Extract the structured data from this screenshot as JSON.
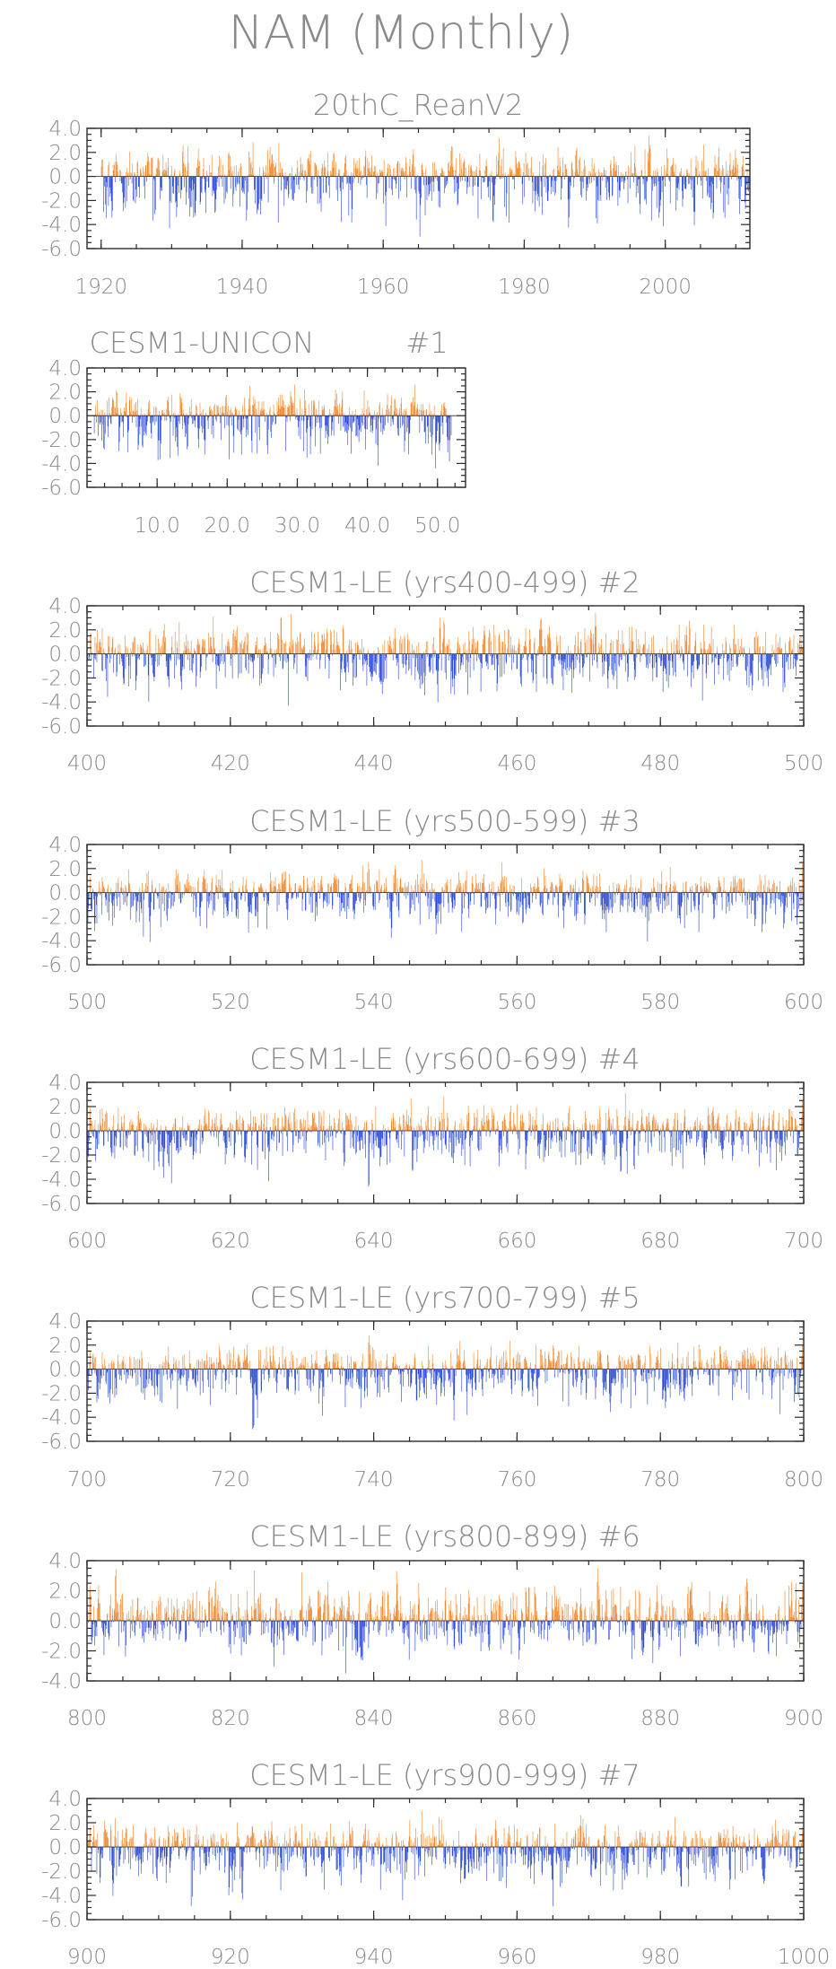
{
  "title": "NAM (Monthly)",
  "colors": {
    "positive": "#f08020",
    "negative": "#2040d8",
    "axis": "#2a2a2a",
    "text": "#8a8a8a"
  },
  "chart_data": [
    {
      "type": "bar",
      "title": "20thC_ReanV2",
      "xlim": [
        1918,
        2012
      ],
      "ylim": [
        -6,
        4
      ],
      "xticks": [
        "1920",
        "1940",
        "1960",
        "1980",
        "2000"
      ],
      "yticks": [
        "4.0",
        "2.0",
        "0.0",
        "-2.0",
        "-4.0",
        "-6.0"
      ],
      "series": [
        {
          "x_start": 1920,
          "x_end": 2012,
          "min": -5.0,
          "max": 3.4
        }
      ]
    },
    {
      "type": "bar",
      "title": "CESM1-UNICON",
      "title_suffix": "#1",
      "xlim": [
        0,
        54
      ],
      "ylim": [
        -6,
        4
      ],
      "xticks": [
        "10.0",
        "20.0",
        "30.0",
        "40.0",
        "50.0"
      ],
      "yticks": [
        "4.0",
        "2.0",
        "0.0",
        "-2.0",
        "-4.0",
        "-6.0"
      ],
      "series": [
        {
          "x_start": 1,
          "x_end": 52,
          "min": -4.4,
          "max": 2.6
        }
      ]
    },
    {
      "type": "bar",
      "title": "CESM1-LE (yrs400-499) #2",
      "xlim": [
        400,
        500
      ],
      "ylim": [
        -6,
        4
      ],
      "xticks": [
        "400",
        "420",
        "440",
        "460",
        "480",
        "500"
      ],
      "yticks": [
        "4.0",
        "2.0",
        "0.0",
        "-2.0",
        "-4.0",
        "-6.0"
      ],
      "series": [
        {
          "x_start": 400,
          "x_end": 500,
          "min": -4.3,
          "max": 3.4
        }
      ]
    },
    {
      "type": "bar",
      "title": "CESM1-LE (yrs500-599) #3",
      "xlim": [
        500,
        600
      ],
      "ylim": [
        -6,
        4
      ],
      "xticks": [
        "500",
        "520",
        "540",
        "560",
        "580",
        "600"
      ],
      "yticks": [
        "4.0",
        "2.0",
        "0.0",
        "-2.0",
        "-4.0",
        "-6.0"
      ],
      "series": [
        {
          "x_start": 500,
          "x_end": 600,
          "min": -4.1,
          "max": 2.7
        }
      ]
    },
    {
      "type": "bar",
      "title": "CESM1-LE (yrs600-699) #4",
      "xlim": [
        600,
        700
      ],
      "ylim": [
        -6,
        4
      ],
      "xticks": [
        "600",
        "620",
        "640",
        "660",
        "680",
        "700"
      ],
      "yticks": [
        "4.0",
        "2.0",
        "0.0",
        "-2.0",
        "-4.0",
        "-6.0"
      ],
      "series": [
        {
          "x_start": 600,
          "x_end": 700,
          "min": -4.6,
          "max": 3.1
        }
      ]
    },
    {
      "type": "bar",
      "title": "CESM1-LE (yrs700-799) #5",
      "xlim": [
        700,
        800
      ],
      "ylim": [
        -6,
        4
      ],
      "xticks": [
        "700",
        "720",
        "740",
        "760",
        "780",
        "800"
      ],
      "yticks": [
        "4.0",
        "2.0",
        "0.0",
        "-2.0",
        "-4.0",
        "-6.0"
      ],
      "series": [
        {
          "x_start": 700,
          "x_end": 800,
          "min": -5.0,
          "max": 2.8
        }
      ]
    },
    {
      "type": "bar",
      "title": "CESM1-LE (yrs800-899) #6",
      "xlim": [
        800,
        900
      ],
      "ylim": [
        -4,
        4
      ],
      "xticks": [
        "800",
        "820",
        "840",
        "860",
        "880",
        "900"
      ],
      "yticks": [
        "4.0",
        "2.0",
        "0.0",
        "-2.0",
        "-4.0"
      ],
      "series": [
        {
          "x_start": 800,
          "x_end": 900,
          "min": -3.5,
          "max": 3.5
        }
      ]
    },
    {
      "type": "bar",
      "title": "CESM1-LE (yrs900-999) #7",
      "xlim": [
        900,
        1000
      ],
      "ylim": [
        -6,
        4
      ],
      "xticks": [
        "900",
        "920",
        "940",
        "960",
        "980",
        "1000"
      ],
      "yticks": [
        "4.0",
        "2.0",
        "0.0",
        "-2.0",
        "-4.0",
        "-6.0"
      ],
      "series": [
        {
          "x_start": 900,
          "x_end": 1000,
          "min": -4.9,
          "max": 3.0
        }
      ]
    }
  ]
}
